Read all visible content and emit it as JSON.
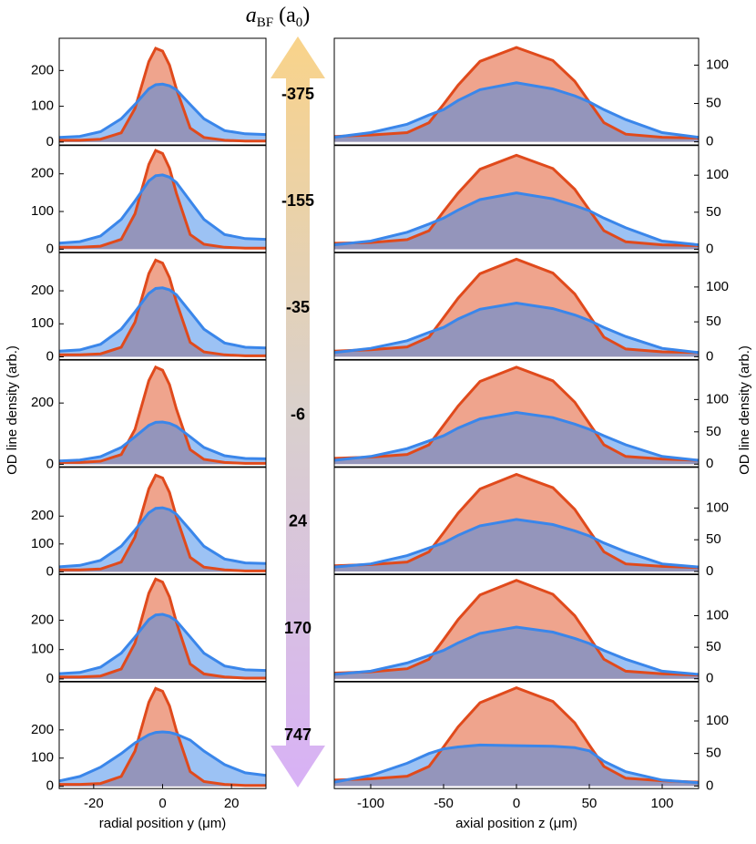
{
  "figure": {
    "title_parts": [
      "a",
      "BF",
      "(a",
      "0",
      ")"
    ],
    "arrow_labels": [
      "-375",
      "-155",
      "-35",
      "-6",
      "24",
      "170",
      "747"
    ],
    "ylabel": "OD line density (arb.)"
  },
  "chart_data": [
    {
      "type": "area-line",
      "x": [
        -30,
        -24,
        -18,
        -12,
        -8,
        -4,
        -2,
        0,
        2,
        4,
        8,
        12,
        18,
        24,
        30
      ],
      "xlim": [
        -30,
        30
      ],
      "ylim": [
        -8,
        290
      ],
      "yticks": [
        0,
        100,
        200
      ],
      "series": [
        {
          "color": "#e04a1c",
          "values": [
            5,
            5,
            8,
            26,
            94,
            225,
            262,
            254,
            215,
            149,
            39,
            13,
            5,
            3,
            3
          ]
        },
        {
          "color": "#3a86ea",
          "values": [
            13,
            16,
            29,
            65,
            105,
            149,
            160,
            162,
            157,
            146,
            105,
            65,
            32,
            23,
            21
          ]
        }
      ]
    },
    {
      "type": "area-line",
      "x": [
        -125,
        -100,
        -75,
        -60,
        -50,
        -40,
        -25,
        0,
        25,
        40,
        50,
        60,
        75,
        100,
        125
      ],
      "xlim": [
        -125,
        125
      ],
      "ylim": [
        -4,
        135
      ],
      "yticks": [
        0,
        50,
        100
      ],
      "series": [
        {
          "color": "#e04a1c",
          "values": [
            7,
            9,
            12,
            25,
            49,
            74,
            105,
            123,
            106,
            79,
            52,
            25,
            10,
            6,
            5
          ]
        },
        {
          "color": "#3a86ea",
          "values": [
            6,
            12,
            23,
            35,
            42,
            54,
            68,
            77,
            69,
            60,
            52,
            42,
            29,
            12,
            6
          ]
        }
      ]
    },
    {
      "type": "area-line",
      "x": [
        -30,
        -24,
        -18,
        -12,
        -8,
        -4,
        -2,
        0,
        2,
        4,
        8,
        12,
        18,
        24,
        30
      ],
      "xlim": [
        -30,
        30
      ],
      "ylim": [
        -8,
        275
      ],
      "yticks": [
        0,
        100,
        200
      ],
      "series": [
        {
          "color": "#e04a1c",
          "values": [
            5,
            5,
            8,
            26,
            94,
            225,
            262,
            254,
            215,
            149,
            39,
            13,
            5,
            3,
            3
          ]
        },
        {
          "color": "#3a86ea",
          "values": [
            16,
            20,
            35,
            79,
            128,
            181,
            195,
            197,
            191,
            177,
            128,
            79,
            39,
            28,
            26
          ]
        }
      ]
    },
    {
      "type": "area-line",
      "x": [
        -125,
        -100,
        -75,
        -60,
        -50,
        -40,
        -25,
        0,
        25,
        40,
        50,
        60,
        75,
        100,
        125
      ],
      "xlim": [
        -125,
        125
      ],
      "ylim": [
        -4,
        140
      ],
      "yticks": [
        0,
        50,
        100
      ],
      "series": [
        {
          "color": "#e04a1c",
          "values": [
            8,
            9,
            13,
            25,
            51,
            76,
            108,
            127,
            109,
            81,
            53,
            25,
            10,
            6,
            5
          ]
        },
        {
          "color": "#3a86ea",
          "values": [
            6,
            11,
            23,
            34,
            42,
            53,
            67,
            76,
            68,
            59,
            52,
            42,
            29,
            11,
            6
          ]
        }
      ]
    },
    {
      "type": "area-line",
      "x": [
        -30,
        -24,
        -18,
        -12,
        -8,
        -4,
        -2,
        0,
        2,
        4,
        8,
        12,
        18,
        24,
        30
      ],
      "xlim": [
        -30,
        30
      ],
      "ylim": [
        -8,
        315
      ],
      "yticks": [
        0,
        100,
        200
      ],
      "series": [
        {
          "color": "#e04a1c",
          "values": [
            6,
            6,
            9,
            29,
            105,
            252,
            293,
            284,
            240,
            167,
            44,
            15,
            6,
            3,
            3
          ]
        },
        {
          "color": "#3a86ea",
          "values": [
            17,
            21,
            38,
            84,
            136,
            192,
            207,
            209,
            203,
            188,
            136,
            84,
            42,
            29,
            27
          ]
        }
      ]
    },
    {
      "type": "area-line",
      "x": [
        -125,
        -100,
        -75,
        -60,
        -50,
        -40,
        -25,
        0,
        25,
        40,
        50,
        60,
        75,
        100,
        125
      ],
      "xlim": [
        -125,
        125
      ],
      "ylim": [
        -4,
        149
      ],
      "yticks": [
        0,
        50,
        100
      ],
      "series": [
        {
          "color": "#e04a1c",
          "values": [
            8,
            10,
            14,
            28,
            56,
            84,
            119,
            140,
            120,
            90,
            59,
            28,
            11,
            7,
            6
          ]
        },
        {
          "color": "#3a86ea",
          "values": [
            6,
            12,
            23,
            35,
            42,
            54,
            68,
            77,
            69,
            60,
            52,
            42,
            29,
            12,
            6
          ]
        }
      ]
    },
    {
      "type": "area-line",
      "x": [
        -30,
        -24,
        -18,
        -12,
        -8,
        -4,
        -2,
        0,
        2,
        4,
        8,
        12,
        18,
        24,
        30
      ],
      "xlim": [
        -30,
        30
      ],
      "ylim": [
        -8,
        340
      ],
      "yticks": [
        0,
        200
      ],
      "series": [
        {
          "color": "#e04a1c",
          "values": [
            6,
            6,
            10,
            32,
            114,
            273,
            317,
            307,
            260,
            181,
            48,
            16,
            6,
            3,
            3
          ]
        },
        {
          "color": "#3a86ea",
          "values": [
            11,
            14,
            25,
            55,
            90,
            127,
            137,
            138,
            134,
            124,
            90,
            55,
            28,
            19,
            18
          ]
        }
      ]
    },
    {
      "type": "area-line",
      "x": [
        -125,
        -100,
        -75,
        -60,
        -50,
        -40,
        -25,
        0,
        25,
        40,
        50,
        60,
        75,
        100,
        125
      ],
      "xlim": [
        -125,
        125
      ],
      "ylim": [
        -4,
        161
      ],
      "yticks": [
        0,
        50,
        100
      ],
      "series": [
        {
          "color": "#e04a1c",
          "values": [
            9,
            11,
            15,
            30,
            60,
            90,
            128,
            150,
            129,
            96,
            63,
            30,
            12,
            8,
            6
          ]
        },
        {
          "color": "#3a86ea",
          "values": [
            6,
            12,
            24,
            36,
            44,
            56,
            70,
            80,
            72,
            62,
            54,
            44,
            30,
            12,
            6
          ]
        }
      ]
    },
    {
      "type": "area-line",
      "x": [
        -30,
        -24,
        -18,
        -12,
        -8,
        -4,
        -2,
        0,
        2,
        4,
        8,
        12,
        18,
        24,
        30
      ],
      "xlim": [
        -30,
        30
      ],
      "ylim": [
        -8,
        375
      ],
      "yticks": [
        0,
        100,
        200
      ],
      "series": [
        {
          "color": "#e04a1c",
          "values": [
            7,
            7,
            10,
            35,
            125,
            298,
            347,
            337,
            285,
            198,
            52,
            17,
            7,
            3,
            3
          ]
        },
        {
          "color": "#3a86ea",
          "values": [
            18,
            23,
            41,
            92,
            150,
            212,
            228,
            230,
            223,
            207,
            150,
            92,
            46,
            32,
            30
          ]
        }
      ]
    },
    {
      "type": "area-line",
      "x": [
        -125,
        -100,
        -75,
        -60,
        -50,
        -40,
        -25,
        0,
        25,
        40,
        50,
        60,
        75,
        100,
        125
      ],
      "xlim": [
        -125,
        125
      ],
      "ylim": [
        -4,
        164
      ],
      "yticks": [
        0,
        50,
        100
      ],
      "series": [
        {
          "color": "#e04a1c",
          "values": [
            9,
            11,
            15,
            31,
            61,
            92,
            130,
            153,
            132,
            98,
            64,
            31,
            12,
            8,
            6
          ]
        },
        {
          "color": "#3a86ea",
          "values": [
            7,
            12,
            25,
            37,
            45,
            57,
            72,
            82,
            74,
            64,
            56,
            45,
            31,
            12,
            7
          ]
        }
      ]
    },
    {
      "type": "area-line",
      "x": [
        -30,
        -24,
        -18,
        -12,
        -8,
        -4,
        -2,
        0,
        2,
        4,
        8,
        12,
        18,
        24,
        30
      ],
      "xlim": [
        -30,
        30
      ],
      "ylim": [
        -8,
        355
      ],
      "yticks": [
        0,
        100,
        200
      ],
      "series": [
        {
          "color": "#e04a1c",
          "values": [
            7,
            7,
            10,
            34,
            122,
            292,
            340,
            330,
            279,
            194,
            51,
            17,
            7,
            3,
            3
          ]
        },
        {
          "color": "#3a86ea",
          "values": [
            18,
            22,
            40,
            88,
            143,
            202,
            218,
            220,
            213,
            198,
            143,
            88,
            44,
            31,
            29
          ]
        }
      ]
    },
    {
      "type": "area-line",
      "x": [
        -125,
        -100,
        -75,
        -60,
        -50,
        -40,
        -25,
        0,
        25,
        40,
        50,
        60,
        75,
        100,
        125
      ],
      "xlim": [
        -125,
        125
      ],
      "ylim": [
        -4,
        165
      ],
      "yticks": [
        0,
        50,
        100
      ],
      "series": [
        {
          "color": "#e04a1c",
          "values": [
            9,
            11,
            16,
            31,
            62,
            94,
            133,
            156,
            134,
            100,
            66,
            31,
            12,
            8,
            6
          ]
        },
        {
          "color": "#3a86ea",
          "values": [
            7,
            12,
            25,
            37,
            45,
            57,
            72,
            82,
            74,
            64,
            56,
            45,
            31,
            12,
            7
          ]
        }
      ]
    },
    {
      "type": "area-line",
      "x": [
        -30,
        -24,
        -18,
        -12,
        -8,
        -4,
        -2,
        0,
        2,
        4,
        8,
        12,
        18,
        24,
        30
      ],
      "xlim": [
        -30,
        30
      ],
      "ylim": [
        -8,
        370
      ],
      "yticks": [
        0,
        100,
        200
      ],
      "xticks": [
        -20,
        0,
        20
      ],
      "xlabel": "radial position y (μm)",
      "series": [
        {
          "color": "#e04a1c",
          "values": [
            7,
            7,
            10,
            35,
            125,
            298,
            347,
            337,
            285,
            198,
            52,
            17,
            7,
            3,
            3
          ]
        },
        {
          "color": "#3a86ea",
          "values": [
            19,
            35,
            68,
            116,
            154,
            183,
            191,
            193,
            191,
            185,
            164,
            125,
            77,
            48,
            39
          ]
        }
      ]
    },
    {
      "type": "area-line",
      "x": [
        -125,
        -100,
        -75,
        -60,
        -50,
        -40,
        -25,
        0,
        25,
        40,
        50,
        60,
        75,
        100,
        125
      ],
      "xlim": [
        -125,
        125
      ],
      "ylim": [
        -4,
        160
      ],
      "yticks": [
        0,
        50,
        100
      ],
      "xticks": [
        -100,
        -50,
        0,
        50,
        100
      ],
      "xlabel": "axial position z (μm)",
      "series": [
        {
          "color": "#e04a1c",
          "values": [
            9,
            11,
            15,
            30,
            60,
            91,
            128,
            151,
            130,
            97,
            63,
            30,
            12,
            8,
            6
          ]
        },
        {
          "color": "#3a86ea",
          "values": [
            6,
            16,
            35,
            50,
            57,
            60,
            63,
            62,
            61,
            59,
            54,
            38,
            22,
            9,
            5
          ]
        }
      ]
    }
  ]
}
